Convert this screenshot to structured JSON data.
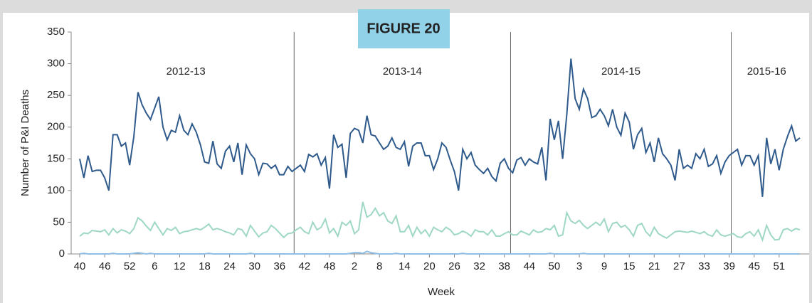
{
  "chart_data": {
    "type": "line",
    "title": "FIGURE 20",
    "y_label": "Number of P&I Deaths",
    "x_label": "Week",
    "annotations": [
      "2012-13",
      "2013-14",
      "2014-15",
      "2015-16"
    ],
    "categories": [
      "40",
      null,
      null,
      null,
      null,
      null,
      "46",
      null,
      null,
      null,
      null,
      null,
      "52",
      null,
      null,
      null,
      null,
      null,
      "6",
      null,
      null,
      null,
      null,
      null,
      "12",
      null,
      null,
      null,
      null,
      null,
      "18",
      null,
      null,
      null,
      null,
      null,
      "24",
      null,
      null,
      null,
      null,
      null,
      "30",
      null,
      null,
      null,
      null,
      null,
      "36",
      null,
      null,
      null,
      null,
      null,
      "42",
      null,
      null,
      null,
      null,
      null,
      "48",
      null,
      null,
      null,
      null,
      null,
      "2",
      null,
      null,
      null,
      null,
      null,
      "8",
      null,
      null,
      null,
      null,
      null,
      "14",
      null,
      null,
      null,
      null,
      null,
      "20",
      null,
      null,
      null,
      null,
      null,
      "26",
      null,
      null,
      null,
      null,
      null,
      "32",
      null,
      null,
      null,
      null,
      null,
      "38",
      null,
      null,
      null,
      null,
      null,
      "44",
      null,
      null,
      null,
      null,
      null,
      "50",
      null,
      null,
      null,
      null,
      null,
      "3",
      null,
      null,
      null,
      null,
      null,
      "9",
      null,
      null,
      null,
      null,
      null,
      "15",
      null,
      null,
      null,
      null,
      null,
      "21",
      null,
      null,
      null,
      null,
      null,
      "27",
      null,
      null,
      null,
      null,
      null,
      "33",
      null,
      null,
      null,
      null,
      null,
      "39",
      null,
      null,
      null,
      null,
      null,
      "45",
      null,
      null,
      null,
      null,
      null,
      "51",
      null,
      null,
      null,
      null,
      null
    ],
    "series": [
      {
        "color": "#2f5a8c",
        "values": [
          150,
          120,
          155,
          130,
          132,
          132,
          120,
          100,
          188,
          188,
          170,
          175,
          140,
          185,
          255,
          235,
          222,
          212,
          230,
          248,
          200,
          180,
          195,
          192,
          218,
          195,
          188,
          205,
          192,
          172,
          145,
          143,
          178,
          142,
          135,
          162,
          170,
          145,
          175,
          125,
          172,
          158,
          150,
          125,
          143,
          142,
          135,
          140,
          125,
          125,
          138,
          130,
          135,
          140,
          130,
          157,
          153,
          158,
          140,
          152,
          103,
          188,
          168,
          173,
          120,
          190,
          198,
          195,
          175,
          218,
          188,
          186,
          175,
          165,
          170,
          183,
          168,
          165,
          177,
          138,
          170,
          175,
          175,
          155,
          155,
          133,
          150,
          175,
          168,
          148,
          130,
          100,
          165,
          150,
          160,
          140,
          133,
          127,
          135,
          122,
          115,
          143,
          150,
          135,
          128,
          148,
          152,
          140,
          150,
          145,
          142,
          168,
          116,
          213,
          180,
          210,
          150,
          220,
          308,
          245,
          228,
          260,
          245,
          215,
          218,
          228,
          218,
          202,
          228,
          200,
          187,
          222,
          208,
          165,
          188,
          198,
          160,
          175,
          145,
          183,
          158,
          150,
          140,
          116,
          165,
          135,
          140,
          135,
          158,
          150,
          165,
          138,
          142,
          155,
          127,
          145,
          155,
          160,
          165,
          140,
          155,
          155,
          140,
          155,
          90,
          183,
          142,
          165,
          132,
          165,
          185,
          202,
          178,
          183
        ]
      },
      {
        "color": "#9fd8c2",
        "values": [
          28,
          33,
          32,
          37,
          36,
          35,
          38,
          30,
          40,
          33,
          38,
          36,
          32,
          40,
          57,
          52,
          44,
          37,
          50,
          40,
          30,
          40,
          37,
          42,
          32,
          35,
          36,
          38,
          40,
          38,
          42,
          47,
          38,
          40,
          38,
          35,
          33,
          30,
          40,
          38,
          28,
          45,
          36,
          27,
          33,
          35,
          45,
          40,
          33,
          26,
          32,
          33,
          38,
          42,
          35,
          32,
          50,
          38,
          42,
          55,
          33,
          40,
          28,
          50,
          45,
          52,
          32,
          38,
          82,
          58,
          62,
          72,
          60,
          65,
          52,
          48,
          60,
          35,
          35,
          45,
          28,
          42,
          32,
          38,
          28,
          42,
          38,
          35,
          42,
          38,
          30,
          32,
          36,
          33,
          28,
          38,
          35,
          35,
          30,
          38,
          28,
          28,
          32,
          35,
          30,
          30,
          36,
          33,
          30,
          38,
          34,
          35,
          40,
          38,
          45,
          28,
          30,
          65,
          52,
          48,
          53,
          45,
          40,
          45,
          50,
          45,
          55,
          35,
          48,
          50,
          42,
          45,
          38,
          28,
          45,
          48,
          35,
          28,
          42,
          32,
          28,
          25,
          30,
          35,
          36,
          35,
          34,
          36,
          34,
          32,
          35,
          30,
          28,
          38,
          30,
          28,
          30,
          32,
          27,
          26,
          32,
          35,
          28,
          38,
          22,
          45,
          30,
          22,
          23,
          38,
          40,
          36,
          40,
          38
        ]
      },
      {
        "color": "#8fbde3",
        "values": [
          0,
          1,
          0,
          0,
          0,
          0,
          0,
          0,
          1,
          0,
          0,
          0,
          0,
          1,
          2,
          1,
          0,
          1,
          0,
          0,
          0,
          0,
          0,
          0,
          0,
          0,
          0,
          0,
          0,
          0,
          0,
          1,
          0,
          0,
          0,
          0,
          0,
          0,
          0,
          0,
          0,
          1,
          0,
          0,
          0,
          0,
          0,
          0,
          0,
          0,
          0,
          0,
          0,
          0,
          0,
          0,
          0,
          0,
          0,
          0,
          0,
          0,
          0,
          0,
          0,
          1,
          2,
          2,
          1,
          4,
          2,
          1,
          0,
          0,
          0,
          0,
          1,
          0,
          0,
          0,
          0,
          0,
          0,
          0,
          0,
          0,
          0,
          0,
          0,
          0,
          0,
          0,
          1,
          0,
          0,
          0,
          0,
          0,
          0,
          0,
          0,
          0,
          0,
          0,
          0,
          0,
          0,
          0,
          0,
          0,
          0,
          0,
          0,
          1,
          0,
          0,
          0,
          0,
          0,
          0,
          0,
          1,
          0,
          0,
          0,
          0,
          0,
          0,
          0,
          0,
          0,
          0,
          0,
          0,
          0,
          0,
          0,
          0,
          0,
          0,
          0,
          0,
          0,
          0,
          0,
          0,
          0,
          0,
          0,
          0,
          0,
          0,
          0,
          0,
          0,
          0,
          0,
          0,
          0,
          0,
          0,
          0,
          0,
          0,
          0,
          0,
          0,
          0,
          0,
          0,
          0,
          0,
          0,
          0
        ]
      }
    ],
    "ylim": [
      0,
      350
    ],
    "yticks": [
      0,
      50,
      100,
      150,
      200,
      250,
      300,
      350
    ]
  }
}
